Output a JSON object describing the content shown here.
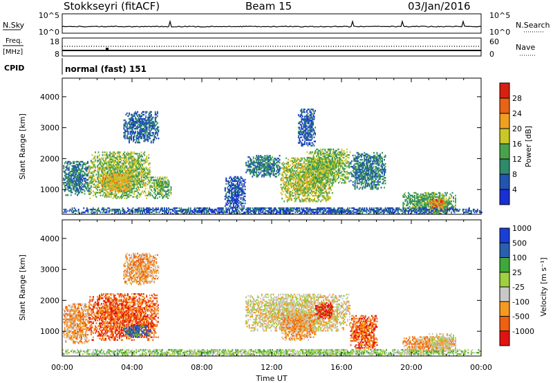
{
  "header": {
    "station": "Stokkseyri (fitACF)",
    "beam": "Beam 15",
    "date": "03/Jan/2016"
  },
  "panels": {
    "nsky": {
      "label": "N.Sky",
      "left_ticks": [
        "10^5",
        "10^0"
      ],
      "right_ticks": [
        "10^5",
        "10^0"
      ],
      "right_label": "N.Search"
    },
    "freq": {
      "label_line1": "Freq.",
      "label_line2": "[MHz]",
      "left_ticks": [
        "18",
        "8"
      ],
      "right_ticks": [
        "60",
        "0"
      ],
      "right_label": "Nave"
    },
    "cpid": {
      "label": "CPID",
      "text": "normal (fast) 151"
    }
  },
  "colors": {
    "power": [
      "#1a2fd6",
      "#2255b0",
      "#2f8a6a",
      "#4aa34a",
      "#c8c828",
      "#f0a020",
      "#e86414",
      "#d82010"
    ],
    "velocity": [
      "#e21212",
      "#f06010",
      "#f59a20",
      "#c8c8c8",
      "#9fd040",
      "#3fa83a",
      "#2a5fae",
      "#1a3fd6"
    ]
  },
  "chart_data": [
    {
      "type": "heatmap",
      "name": "power",
      "ylabel": "Slant Range [km]",
      "colorbar_label": "Power [dB]",
      "y_ticks": [
        "1000",
        "2000",
        "3000",
        "4000"
      ],
      "x_ticks": [
        "00:00",
        "04:00",
        "08:00",
        "12:00",
        "16:00",
        "20:00",
        "00:00"
      ],
      "colorbar_ticks": [
        "4",
        "8",
        "12",
        "16",
        "20",
        "24",
        "28"
      ],
      "ylim": [
        200,
        4600
      ],
      "xlim": [
        0,
        24
      ],
      "clim": [
        0,
        32
      ],
      "regions": [
        {
          "t": [
            0.05,
            1.5
          ],
          "r": [
            800,
            1900
          ],
          "v": 9
        },
        {
          "t": [
            1.5,
            5.0
          ],
          "r": [
            700,
            2200
          ],
          "v": 16
        },
        {
          "t": [
            2.2,
            4.0
          ],
          "r": [
            900,
            1500
          ],
          "v": 20
        },
        {
          "t": [
            3.5,
            5.5
          ],
          "r": [
            2500,
            3500
          ],
          "v": 7
        },
        {
          "t": [
            5.0,
            6.2
          ],
          "r": [
            700,
            1400
          ],
          "v": 14
        },
        {
          "t": [
            9.3,
            10.5
          ],
          "r": [
            400,
            1400
          ],
          "v": 5
        },
        {
          "t": [
            10.5,
            12.5
          ],
          "r": [
            1400,
            2100
          ],
          "v": 9
        },
        {
          "t": [
            12.5,
            15.5
          ],
          "r": [
            600,
            2000
          ],
          "v": 17
        },
        {
          "t": [
            14.0,
            16.5
          ],
          "r": [
            1200,
            2300
          ],
          "v": 15
        },
        {
          "t": [
            13.5,
            14.5
          ],
          "r": [
            2400,
            3600
          ],
          "v": 6
        },
        {
          "t": [
            16.5,
            18.5
          ],
          "r": [
            1000,
            2200
          ],
          "v": 9
        },
        {
          "t": [
            19.5,
            22.5
          ],
          "r": [
            200,
            900
          ],
          "v": 13
        },
        {
          "t": [
            21.0,
            22.0
          ],
          "r": [
            300,
            700
          ],
          "v": 24
        },
        {
          "t": [
            0.0,
            24.0
          ],
          "r": [
            200,
            400
          ],
          "v": 6
        }
      ]
    },
    {
      "type": "heatmap",
      "name": "velocity",
      "ylabel": "Slant Range [km]",
      "xlabel": "Time UT",
      "colorbar_label": "Velocity [m s⁻¹]",
      "y_ticks": [
        "1000",
        "2000",
        "3000",
        "4000"
      ],
      "x_ticks": [
        "00:00",
        "04:00",
        "08:00",
        "12:00",
        "16:00",
        "20:00",
        "00:00"
      ],
      "colorbar_ticks": [
        "-1000",
        "-500",
        "-100",
        "-25",
        "25",
        "100",
        "500",
        "1000"
      ],
      "ylim": [
        200,
        4600
      ],
      "xlim": [
        0,
        24
      ],
      "regions": [
        {
          "t": [
            0.05,
            1.5
          ],
          "r": [
            600,
            1900
          ],
          "c": 2
        },
        {
          "t": [
            1.5,
            5.5
          ],
          "r": [
            700,
            2200
          ],
          "c": 1
        },
        {
          "t": [
            3.5,
            5.0
          ],
          "r": [
            800,
            1200
          ],
          "c": 6
        },
        {
          "t": [
            3.5,
            5.5
          ],
          "r": [
            2500,
            3500
          ],
          "c": 2
        },
        {
          "t": [
            10.5,
            16.5
          ],
          "r": [
            1000,
            2200
          ],
          "c": 3
        },
        {
          "t": [
            12.5,
            14.5
          ],
          "r": [
            700,
            1600
          ],
          "c": 2
        },
        {
          "t": [
            14.5,
            15.5
          ],
          "r": [
            1400,
            1900
          ],
          "c": 0
        },
        {
          "t": [
            16.5,
            18.0
          ],
          "r": [
            400,
            1500
          ],
          "c": 1
        },
        {
          "t": [
            19.5,
            22.5
          ],
          "r": [
            300,
            800
          ],
          "c": 2
        },
        {
          "t": [
            21.0,
            22.5
          ],
          "r": [
            400,
            900
          ],
          "c": 3
        },
        {
          "t": [
            0.0,
            24.0
          ],
          "r": [
            200,
            400
          ],
          "c": 4
        }
      ]
    }
  ]
}
